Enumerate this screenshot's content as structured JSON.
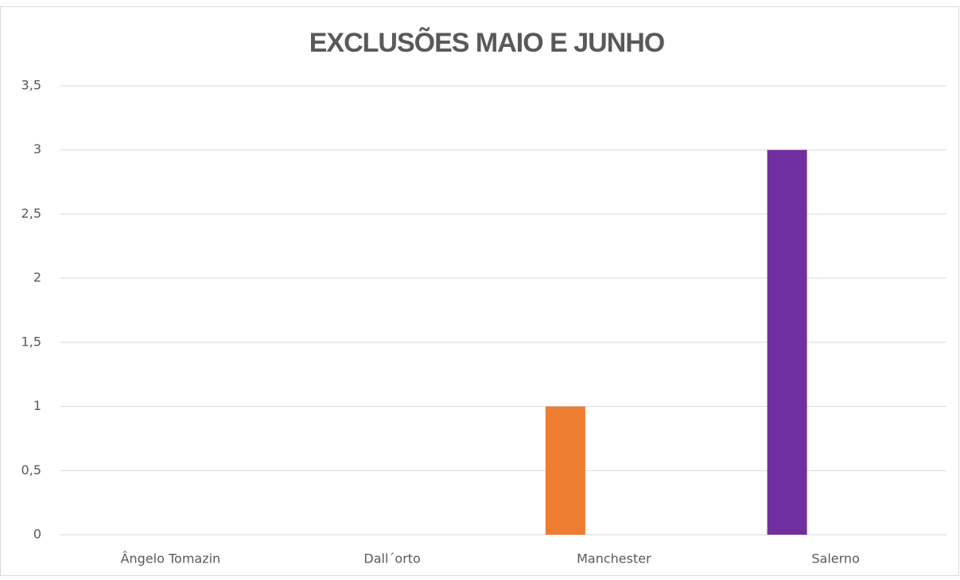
{
  "chart_data": {
    "type": "bar",
    "title": "EXCLUSÕES MAIO E JUNHO",
    "categories": [
      "Ângelo Tomazin",
      "Dall´orto",
      "Manchester",
      "Salerno"
    ],
    "values": [
      0,
      0,
      1,
      3
    ],
    "colors": [
      null,
      null,
      "#ed7d31",
      "#7030a0"
    ],
    "ylim": [
      0,
      3.5
    ],
    "yticks": [
      0,
      {
        "value": 0.5,
        "label": "0,5"
      },
      1,
      {
        "value": 1.5,
        "label": "1,5"
      },
      2,
      {
        "value": 2.5,
        "label": "2,5"
      },
      3,
      {
        "value": 3.5,
        "label": "3,5"
      }
    ],
    "grid": true
  }
}
